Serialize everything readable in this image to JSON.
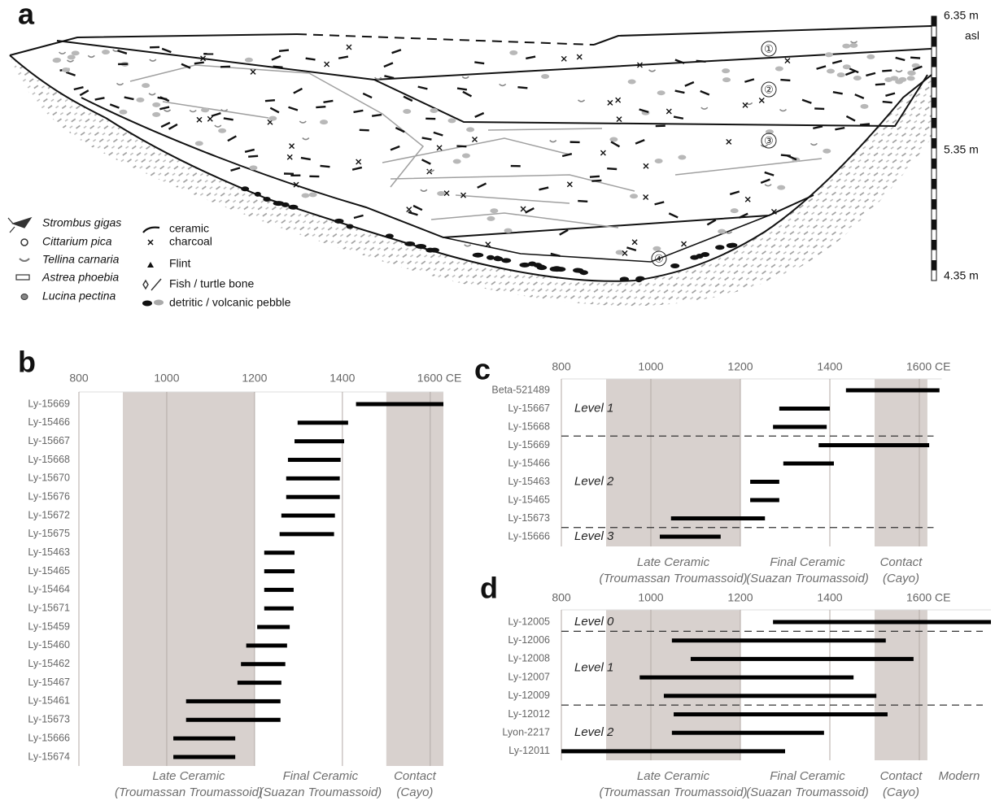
{
  "panel_a": {
    "label": "a",
    "scale_labels": [
      "6.35 m",
      "asl",
      "5.35 m",
      "4.35 m"
    ],
    "layers": [
      "①",
      "②",
      "③",
      "④"
    ],
    "legend_species": [
      "Strombus gigas",
      "Cittarium pica",
      "Tellina carnaria",
      "Astrea phoebia",
      "Lucina pectina"
    ],
    "legend_items": [
      "ceramic",
      "charcoal",
      "Flint",
      "Fish / turtle bone",
      "detritic / volcanic pebble"
    ]
  },
  "chart_data": [
    {
      "type": "range",
      "panel_label": "b",
      "categories": [
        "Ly-15669",
        "Ly-15466",
        "Ly-15667",
        "Ly-15668",
        "Ly-15670",
        "Ly-15676",
        "Ly-15672",
        "Ly-15675",
        "Ly-15463",
        "Ly-15465",
        "Ly-15464",
        "Ly-15671",
        "Ly-15459",
        "Ly-15460",
        "Ly-15462",
        "Ly-15467",
        "Ly-15461",
        "Ly-15673",
        "Ly-15666",
        "Ly-15674"
      ],
      "start": [
        1431,
        1298,
        1291,
        1276,
        1272,
        1272,
        1261,
        1257,
        1222,
        1222,
        1222,
        1222,
        1206,
        1181,
        1169,
        1161,
        1044,
        1044,
        1015,
        1015
      ],
      "end": [
        1630,
        1413,
        1404,
        1396,
        1394,
        1394,
        1383,
        1381,
        1291,
        1291,
        1289,
        1289,
        1280,
        1274,
        1270,
        1261,
        1259,
        1259,
        1156,
        1156
      ],
      "color": "#000000",
      "xlim": [
        800,
        1630
      ],
      "xticks": [
        800,
        1000,
        1200,
        1400,
        {
          "value": 1600,
          "label": "1600 CE"
        }
      ],
      "periods": [
        {
          "name": "Late Ceramic",
          "subname": "(Troumassan Troumassoid)",
          "start": 900,
          "end": 1200,
          "shaded": true
        },
        {
          "name": "Final Ceramic",
          "subname": "(Suazan Troumassoid)",
          "start": 1200,
          "end": 1500,
          "shaded": false
        },
        {
          "name": "Contact",
          "subname": "(Cayo)",
          "start": 1500,
          "end": 1630,
          "shaded": true
        }
      ]
    },
    {
      "type": "range",
      "panel_label": "c",
      "categories": [
        "Beta-521489",
        "Ly-15667",
        "Ly-15668",
        "Ly-15669",
        "Ly-15466",
        "Ly-15463",
        "Ly-15465",
        "Ly-15673",
        "Ly-15666"
      ],
      "start": [
        1436,
        1287,
        1273,
        1375,
        1296,
        1222,
        1222,
        1045,
        1020
      ],
      "end": [
        1645,
        1400,
        1393,
        1622,
        1409,
        1287,
        1287,
        1255,
        1156
      ],
      "color": "#000000",
      "xlim": [
        800,
        1650
      ],
      "xticks": [
        800,
        1000,
        1200,
        1400,
        {
          "value": 1600,
          "label": "1600 CE"
        }
      ],
      "levels": [
        {
          "name": "Level 1",
          "size": 3
        },
        {
          "name": "Level 2",
          "size": 5
        },
        {
          "name": "Level 3",
          "size": 1
        }
      ],
      "periods": [
        {
          "name": "Late Ceramic",
          "subname": "(Troumassan Troumassoid)",
          "start": 900,
          "end": 1200,
          "shaded": true
        },
        {
          "name": "Final Ceramic",
          "subname": "(Suazan Troumassoid)",
          "start": 1200,
          "end": 1500,
          "shaded": false
        },
        {
          "name": "Contact",
          "subname": "(Cayo)",
          "start": 1500,
          "end": 1618,
          "shaded": true
        }
      ]
    },
    {
      "type": "range",
      "panel_label": "d",
      "categories": [
        "Ly-12005",
        "Ly-12006",
        "Ly-12008",
        "Ly-12007",
        "Ly-12009",
        "Ly-12012",
        "Lyon-2217",
        "Ly-12011"
      ],
      "start": [
        1273,
        1047,
        1089,
        975,
        1029,
        1051,
        1047,
        800
      ],
      "end": [
        1760,
        1525,
        1587,
        1453,
        1504,
        1529,
        1387,
        1300
      ],
      "color": "#000000",
      "xlim": [
        800,
        1760
      ],
      "xticks": [
        800,
        1000,
        1200,
        1400,
        {
          "value": 1600,
          "label": "1600 CE"
        }
      ],
      "levels": [
        {
          "name": "Level 0",
          "size": 1
        },
        {
          "name": "Level 1",
          "size": 4
        },
        {
          "name": "Level 2",
          "size": 3
        }
      ],
      "periods": [
        {
          "name": "Late Ceramic",
          "subname": "(Troumassan Troumassoid)",
          "start": 900,
          "end": 1200,
          "shaded": true
        },
        {
          "name": "Final Ceramic",
          "subname": "(Suazan Troumassoid)",
          "start": 1200,
          "end": 1500,
          "shaded": false
        },
        {
          "name": "Contact",
          "subname": "(Cayo)",
          "start": 1500,
          "end": 1618,
          "shaded": true
        },
        {
          "name": "Modern",
          "subname": null,
          "start": 1618,
          "end": 1760,
          "shaded": false
        }
      ]
    }
  ]
}
